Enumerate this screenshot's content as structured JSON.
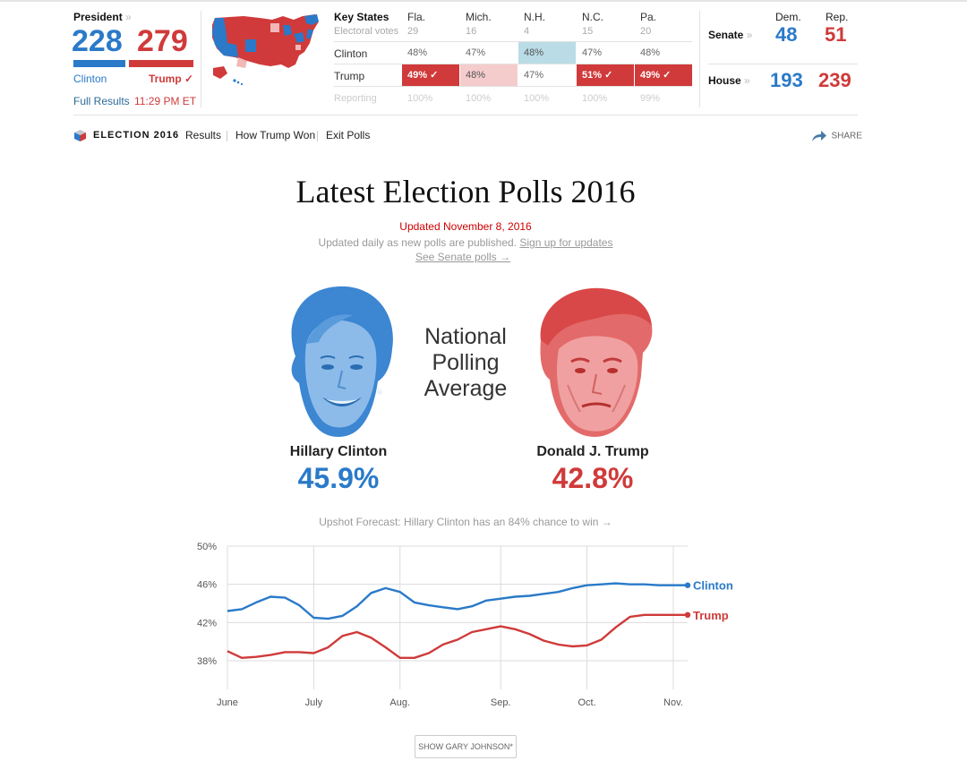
{
  "colors": {
    "dem": "#2a7ac9",
    "rep": "#d03a3a",
    "dem_light": "#b9dce6",
    "rep_light": "#f5cccc",
    "rep_win": "#d03a3a"
  },
  "president": {
    "label": "President",
    "chevron": "»",
    "dem_votes": "228",
    "rep_votes": "279",
    "dem_name": "Clinton",
    "rep_name": "Trump",
    "winner_mark": "✓",
    "full_results": "Full Results",
    "time": "11:29 PM ET",
    "dem_share": 0.449
  },
  "key_states": {
    "title": "Key States",
    "columns": [
      "Fla.",
      "Mich.",
      "N.H.",
      "N.C.",
      "Pa."
    ],
    "rows": [
      {
        "label": "Electoral votes",
        "values": [
          "29",
          "16",
          "4",
          "15",
          "20"
        ]
      },
      {
        "label": "Clinton",
        "values": [
          "48%",
          "47%",
          "48%",
          "47%",
          "48%"
        ]
      },
      {
        "label": "Trump",
        "values": [
          "49% ✓",
          "48%",
          "47%",
          "51% ✓",
          "49% ✓"
        ]
      },
      {
        "label": "Reporting",
        "values": [
          "100%",
          "100%",
          "100%",
          "100%",
          "99%"
        ]
      }
    ]
  },
  "congress": {
    "dem_header": "Dem.",
    "rep_header": "Rep.",
    "senate": {
      "label": "Senate",
      "dem": "48",
      "rep": "51"
    },
    "house": {
      "label": "House",
      "dem": "193",
      "rep": "239"
    }
  },
  "nav": {
    "brand": "ELECTION 2016",
    "items": [
      "Results",
      "How Trump Won",
      "Exit Polls"
    ],
    "share": "SHARE"
  },
  "headline": {
    "title": "Latest Election Polls 2016",
    "updated": "Updated November 8, 2016",
    "subtitle": "Updated daily as new polls are published.",
    "signup": "Sign up for updates",
    "senate_link": "See Senate polls →"
  },
  "candidates": {
    "center_label_1": "National",
    "center_label_2": "Polling",
    "center_label_3": "Average",
    "dem": {
      "name": "Hillary Clinton",
      "avg": "45.9%"
    },
    "rep": {
      "name": "Donald J. Trump",
      "avg": "42.8%"
    },
    "forecast": "Upshot Forecast: Hillary Clinton has an 84% chance to win →"
  },
  "chart_data": {
    "type": "line",
    "x": [
      "Jun 1",
      "Jun 6",
      "Jun 11",
      "Jun 16",
      "Jun 21",
      "Jun 26",
      "Jul 1",
      "Jul 6",
      "Jul 11",
      "Jul 16",
      "Jul 21",
      "Jul 26",
      "Jul 31",
      "Aug 5",
      "Aug 10",
      "Aug 15",
      "Aug 20",
      "Aug 25",
      "Aug 30",
      "Sep 4",
      "Sep 9",
      "Sep 14",
      "Sep 19",
      "Sep 24",
      "Sep 29",
      "Oct 4",
      "Oct 9",
      "Oct 14",
      "Oct 19",
      "Oct 24",
      "Oct 29",
      "Nov 3",
      "Nov 8"
    ],
    "series": [
      {
        "name": "Clinton",
        "values": [
          43.2,
          43.4,
          44.1,
          44.7,
          44.6,
          43.8,
          42.5,
          42.4,
          42.7,
          43.7,
          45.1,
          45.6,
          45.2,
          44.1,
          43.8,
          43.6,
          43.4,
          43.7,
          44.3,
          44.5,
          44.7,
          44.8,
          45.0,
          45.2,
          45.6,
          45.9,
          46.0,
          46.1,
          46.0,
          46.0,
          45.9,
          45.9,
          45.9
        ]
      },
      {
        "name": "Trump",
        "values": [
          39.0,
          38.3,
          38.4,
          38.6,
          38.9,
          38.9,
          38.8,
          39.4,
          40.6,
          41.0,
          40.4,
          39.4,
          38.3,
          38.3,
          38.8,
          39.7,
          40.2,
          41.0,
          41.3,
          41.6,
          41.3,
          40.8,
          40.1,
          39.7,
          39.5,
          39.6,
          40.2,
          41.5,
          42.6,
          42.8,
          42.8,
          42.8,
          42.8
        ]
      }
    ],
    "x_ticks": [
      "June",
      "July",
      "Aug.",
      "Sep.",
      "Oct.",
      "Nov."
    ],
    "y_ticks": [
      "50%",
      "46%",
      "42%",
      "38%"
    ],
    "ylim": [
      35,
      50
    ],
    "grid": true,
    "end_labels": [
      "Clinton",
      "Trump"
    ]
  },
  "johnson_button": "SHOW GARY JOHNSON*"
}
